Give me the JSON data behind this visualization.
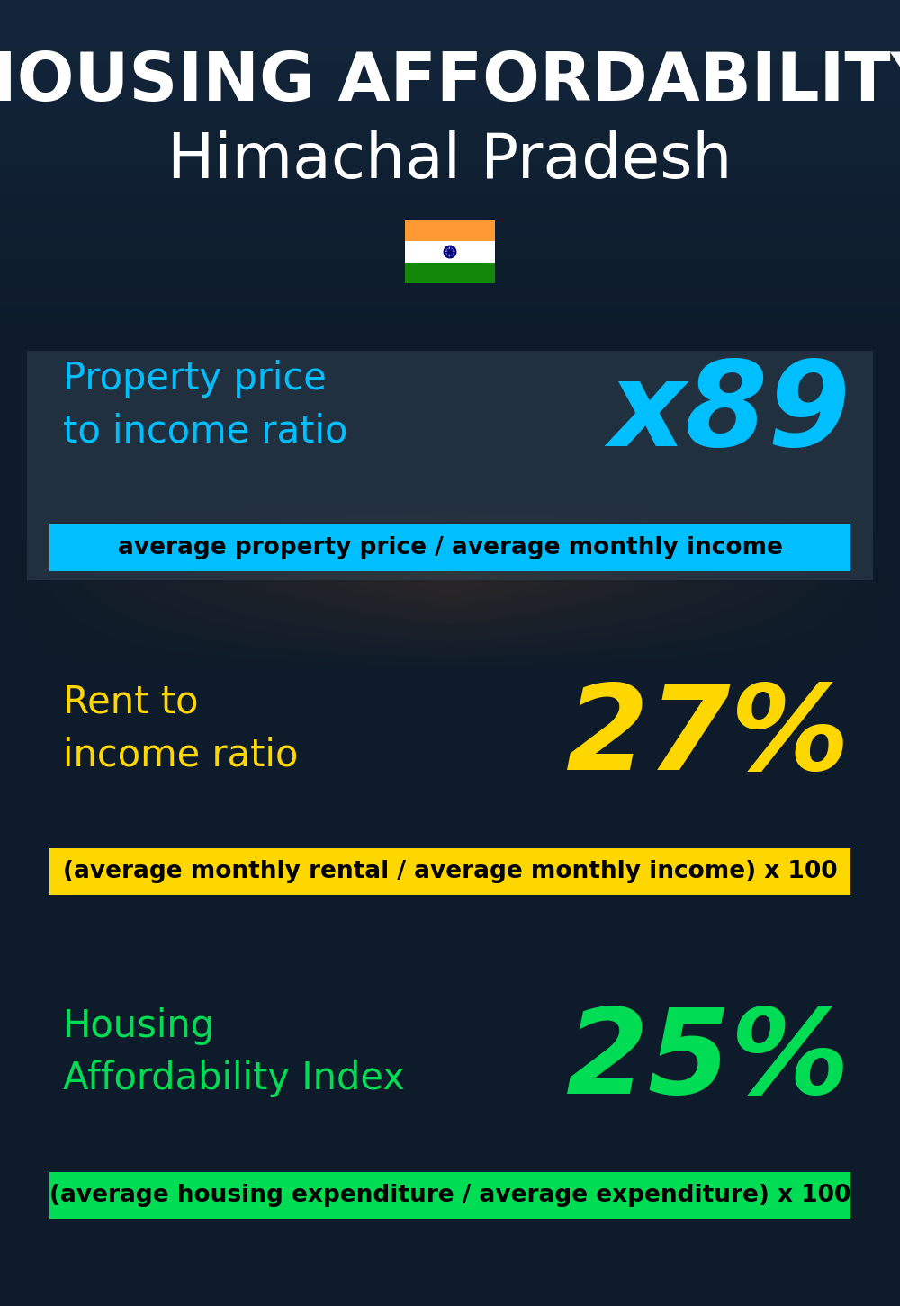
{
  "title_line1": "HOUSING AFFORDABILITY",
  "title_line2": "Himachal Pradesh",
  "bg_color": "#0d1b2a",
  "section1_label": "Property price\nto income ratio",
  "section1_value": "x89",
  "section1_label_color": "#00bfff",
  "section1_value_color": "#00bfff",
  "section1_banner": "average property price / average monthly income",
  "section1_banner_bg": "#00bfff",
  "section1_banner_color": "#000000",
  "section2_label": "Rent to\nincome ratio",
  "section2_value": "27%",
  "section2_label_color": "#FFD700",
  "section2_value_color": "#FFD700",
  "section2_banner": "(average monthly rental / average monthly income) x 100",
  "section2_banner_bg": "#FFD700",
  "section2_banner_color": "#000000",
  "section3_label": "Housing\nAffordability Index",
  "section3_value": "25%",
  "section3_label_color": "#00dd55",
  "section3_value_color": "#00dd55",
  "section3_banner": "(average housing expenditure / average expenditure) x 100",
  "section3_banner_bg": "#00dd55",
  "section3_banner_color": "#000000",
  "title_line1_color": "#ffffff",
  "title_line2_color": "#ffffff",
  "title_line1_fontsize": 54,
  "title_line2_fontsize": 50,
  "section_label_fontsize": 30,
  "section1_value_fontsize": 95,
  "section2_value_fontsize": 95,
  "section3_value_fontsize": 95,
  "banner_fontsize": 19,
  "flag_orange": "#FF9933",
  "flag_white": "#FFFFFF",
  "flag_green": "#138808",
  "flag_blue": "#000080"
}
